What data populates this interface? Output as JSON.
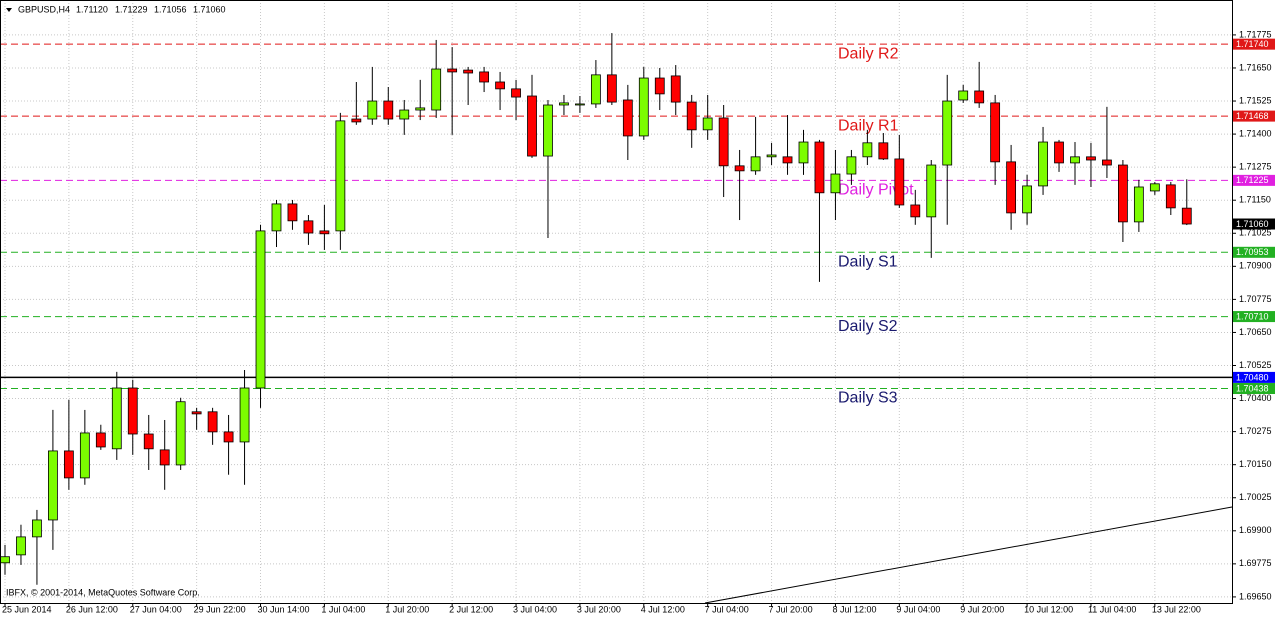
{
  "chart_data": {
    "type": "candlestick",
    "title": "GBPUSD,H4",
    "title_values": [
      {
        "value": 1.7112,
        "label": "1.71120"
      },
      {
        "value": 1.71229,
        "label": "1.71229"
      },
      {
        "value": 1.71056,
        "label": "1.71056"
      },
      {
        "value": 1.7106,
        "label": "1.71060"
      }
    ],
    "footer": "IBFX, © 2001-2014, MetaQuotes Software Corp.",
    "x": [
      "25 Jun 2014",
      null,
      null,
      null,
      "26 Jun 12:00",
      null,
      null,
      null,
      "27 Jun 04:00",
      null,
      null,
      null,
      "29 Jun 22:00",
      null,
      null,
      null,
      "30 Jun 14:00",
      null,
      null,
      null,
      "1 Jul 04:00",
      null,
      null,
      null,
      "1 Jul 20:00",
      null,
      null,
      null,
      "2 Jul 12:00",
      null,
      null,
      null,
      "3 Jul 04:00",
      null,
      null,
      null,
      "3 Jul 20:00",
      null,
      null,
      null,
      "4 Jul 12:00",
      null,
      null,
      null,
      "7 Jul 04:00",
      null,
      null,
      null,
      "7 Jul 20:00",
      null,
      null,
      null,
      "8 Jul 12:00",
      null,
      null,
      null,
      "9 Jul 04:00",
      null,
      null,
      null,
      "9 Jul 20:00",
      null,
      null,
      null,
      "10 Jul 12:00",
      null,
      null,
      null,
      "11 Jul 04:00",
      null,
      null,
      null,
      "13 Jul 22:00",
      null,
      null
    ],
    "open": [
      1.69779,
      1.69809,
      1.69877,
      1.69941,
      1.70202,
      1.701,
      1.7027,
      1.7021,
      1.7044,
      1.70266,
      1.70206,
      1.70149,
      1.7035,
      1.7035,
      1.70274,
      1.70236,
      1.7044,
      1.71034,
      1.71136,
      1.71072,
      1.71034,
      1.71034,
      1.71457,
      1.71457,
      1.71525,
      1.71457,
      1.71491,
      1.71491,
      1.71646,
      1.71642,
      1.71635,
      1.71597,
      1.71571,
      1.71544,
      1.71317,
      1.7151,
      1.7151,
      1.71514,
      1.71624,
      1.71529,
      1.71393,
      1.71612,
      1.7162,
      1.71521,
      1.71416,
      1.71461,
      1.7128,
      1.71261,
      1.71314,
      1.71314,
      1.71291,
      1.7137,
      1.71178,
      1.71249,
      1.71314,
      1.71367,
      1.71306,
      1.71132,
      1.71087,
      1.71283,
      1.71529,
      1.71563,
      1.71518,
      1.71295,
      1.71102,
      1.71204,
      1.7137,
      1.71291,
      1.71314,
      1.71302,
      1.71283,
      1.71068,
      1.71185,
      1.71208,
      1.7112
    ],
    "high": [
      1.69847,
      1.69923,
      1.69979,
      1.70357,
      1.70395,
      1.70357,
      1.70301,
      1.70501,
      1.70471,
      1.70338,
      1.70319,
      1.70403,
      1.70365,
      1.70365,
      1.70338,
      1.70508,
      1.71057,
      1.71151,
      1.71151,
      1.71094,
      1.71132,
      1.7148,
      1.71597,
      1.71654,
      1.71578,
      1.71529,
      1.71605,
      1.71756,
      1.71729,
      1.71654,
      1.71654,
      1.71635,
      1.71605,
      1.71624,
      1.71529,
      1.71548,
      1.71544,
      1.7168,
      1.71782,
      1.71586,
      1.71654,
      1.7165,
      1.71661,
      1.71548,
      1.71548,
      1.7151,
      1.7134,
      1.71465,
      1.71367,
      1.71472,
      1.71416,
      1.71378,
      1.7134,
      1.7134,
      1.71416,
      1.71404,
      1.71397,
      1.71189,
      1.71302,
      1.71624,
      1.71586,
      1.71673,
      1.71548,
      1.71359,
      1.71246,
      1.71427,
      1.71378,
      1.7137,
      1.71367,
      1.71503,
      1.71302,
      1.71227,
      1.71219,
      1.71219,
      1.71229
    ],
    "low": [
      1.69734,
      1.69771,
      1.69696,
      1.69828,
      1.70055,
      1.70074,
      1.70206,
      1.70168,
      1.70187,
      1.7013,
      1.70055,
      1.7013,
      1.70282,
      1.70225,
      1.70112,
      1.70074,
      1.70365,
      1.70973,
      1.71038,
      1.70981,
      1.70962,
      1.70962,
      1.71435,
      1.71435,
      1.71435,
      1.71397,
      1.71453,
      1.71461,
      1.71397,
      1.7151,
      1.71559,
      1.71491,
      1.71453,
      1.7131,
      1.71007,
      1.71472,
      1.7148,
      1.71499,
      1.7151,
      1.71302,
      1.71378,
      1.71491,
      1.71472,
      1.71348,
      1.71378,
      1.71162,
      1.71075,
      1.71246,
      1.71283,
      1.71246,
      1.71246,
      1.70841,
      1.71075,
      1.71208,
      1.71283,
      1.71302,
      1.71121,
      1.71057,
      1.70932,
      1.71057,
      1.71518,
      1.71499,
      1.71208,
      1.71038,
      1.71057,
      1.7117,
      1.71257,
      1.71208,
      1.712,
      1.71234,
      1.70992,
      1.7103,
      1.7117,
      1.71094,
      1.71056
    ],
    "close": [
      1.69802,
      1.69877,
      1.69941,
      1.70202,
      1.701,
      1.7027,
      1.70217,
      1.7044,
      1.70266,
      1.7021,
      1.70149,
      1.70388,
      1.70342,
      1.70274,
      1.70236,
      1.7044,
      1.71034,
      1.71136,
      1.71072,
      1.71026,
      1.71023,
      1.7145,
      1.71446,
      1.71525,
      1.71457,
      1.71491,
      1.71499,
      1.71646,
      1.71635,
      1.71631,
      1.71597,
      1.71571,
      1.7154,
      1.71317,
      1.7151,
      1.71518,
      1.71514,
      1.71624,
      1.71521,
      1.71393,
      1.71612,
      1.71552,
      1.71521,
      1.71416,
      1.71461,
      1.7128,
      1.71261,
      1.71314,
      1.71321,
      1.71291,
      1.7137,
      1.71178,
      1.71249,
      1.71314,
      1.71367,
      1.71306,
      1.71132,
      1.71087,
      1.71283,
      1.71525,
      1.71563,
      1.71518,
      1.71295,
      1.71102,
      1.71204,
      1.7137,
      1.71291,
      1.71314,
      1.71302,
      1.71283,
      1.71068,
      1.712,
      1.71212,
      1.71121,
      1.7106
    ],
    "up_color": "#7cfc00",
    "down_color": "#ff0000",
    "ylim": [
      1.69627,
      1.71907
    ],
    "yticks": [
      1.71775,
      {
        "value": 1.7165,
        "label": "1.71650"
      },
      1.71525,
      {
        "value": 1.714,
        "label": "1.71400"
      },
      1.71275,
      {
        "value": 1.7115,
        "label": "1.71150"
      },
      1.71025,
      {
        "value": 1.709,
        "label": "1.70900"
      },
      1.70775,
      {
        "value": 1.7065,
        "label": "1.70650"
      },
      1.70525,
      {
        "value": 1.704,
        "label": "1.70400"
      },
      1.70275,
      {
        "value": 1.7015,
        "label": "1.70150"
      },
      1.70025,
      {
        "value": 1.699,
        "label": "1.69900"
      },
      1.69775,
      {
        "value": 1.6965,
        "label": "1.69650"
      }
    ],
    "grid": true,
    "levels": [
      {
        "name": "Daily R2",
        "value": 1.7174,
        "label": "1.71740",
        "color": "#e01818",
        "text_color": "#e01818"
      },
      {
        "name": "Daily R1",
        "value": 1.71468,
        "color": "#e01818",
        "text_color": "#e01818"
      },
      {
        "name": "Daily Pivot",
        "value": 1.71225,
        "color": "#e020e0",
        "text_color": "#e020e0"
      },
      {
        "name": "Daily S1",
        "value": 1.70953,
        "color": "#22b022",
        "text_color": "#1a1a6e"
      },
      {
        "name": "Daily S2",
        "value": 1.7071,
        "label": "1.70710",
        "color": "#22b022",
        "text_color": "#1a1a6e"
      },
      {
        "name": "Daily S3",
        "value": 1.70438,
        "color": "#22b022",
        "text_color": "#1a1a6e"
      }
    ],
    "price_line": {
      "value": 1.7048,
      "label": "1.70480",
      "color": "#000000",
      "tag_color": "#0000ff"
    },
    "current_price": {
      "value": 1.7106,
      "label": "1.71060",
      "tag_color": "#000000"
    }
  }
}
